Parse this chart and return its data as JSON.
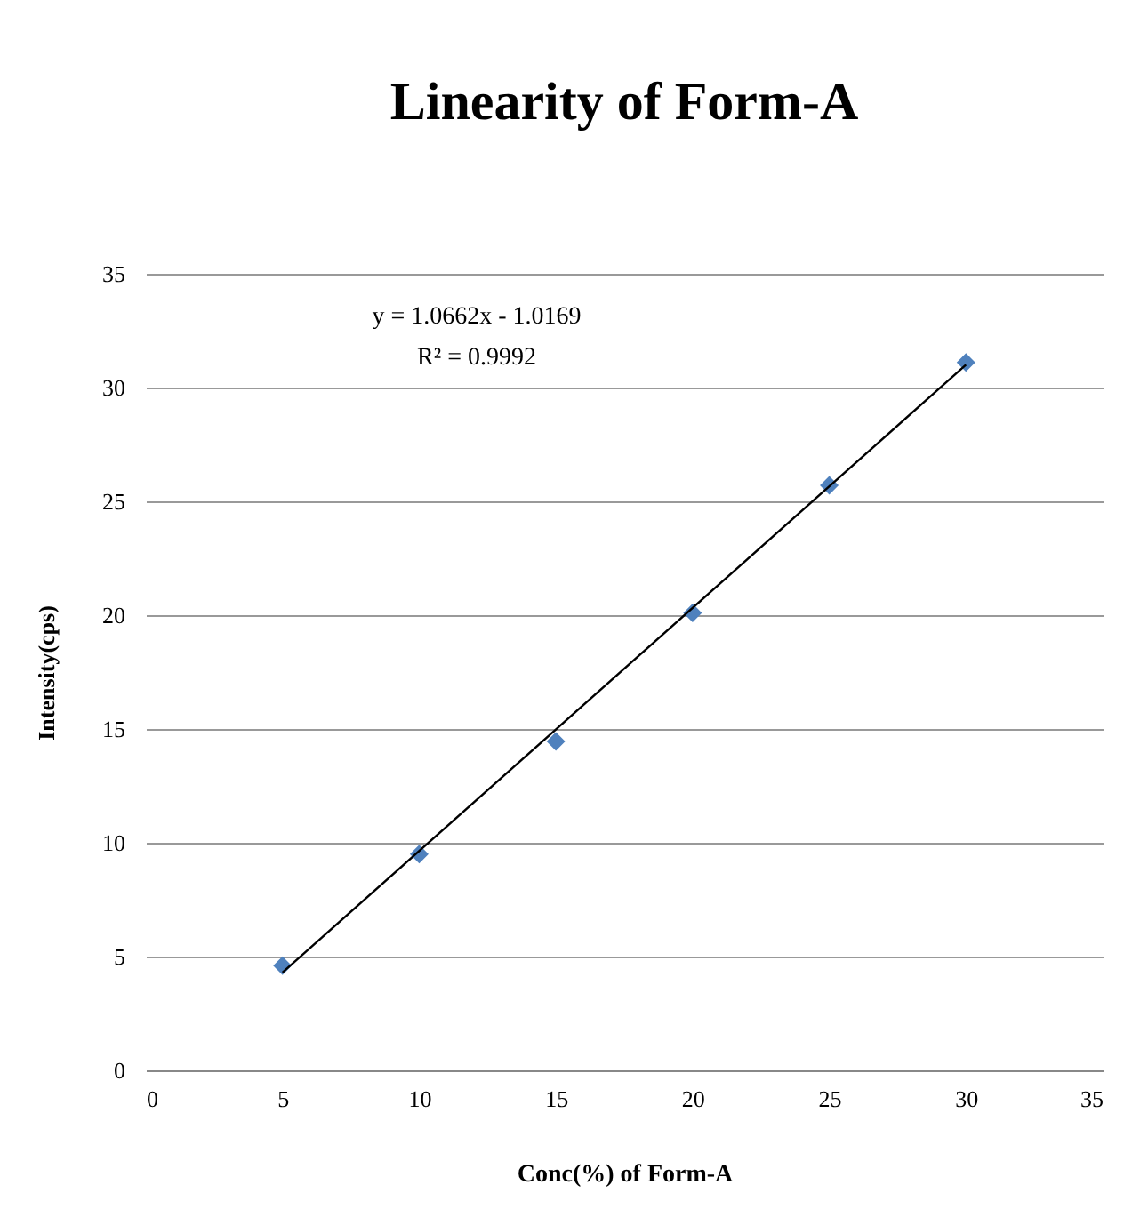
{
  "chart_data": {
    "type": "scatter",
    "title": "Linearity of Form-A",
    "xlabel": "Conc(%) of Form-A",
    "ylabel": "Intensity(cps)",
    "annotations": [
      "y = 1.0662x - 1.0169",
      "R² = 0.9992"
    ],
    "series": [
      {
        "color": "#4f81bd",
        "x": [
          5,
          10,
          15,
          20,
          25,
          30
        ],
        "values": [
          4.6,
          9.5,
          14.45,
          20.1,
          25.7,
          31.1
        ],
        "marker": "diamond"
      },
      {
        "type": "line",
        "color": "#000000",
        "x": [
          5,
          30
        ],
        "values": [
          4.3,
          31.0
        ],
        "marker": "none"
      }
    ],
    "xlim": [
      0,
      35
    ],
    "xticks": [
      0,
      5,
      10,
      15,
      20,
      25,
      30,
      35
    ],
    "ylim": [
      0,
      35
    ],
    "yticks": [
      0,
      5,
      10,
      15,
      20,
      25,
      30,
      35
    ],
    "grid": "y"
  }
}
